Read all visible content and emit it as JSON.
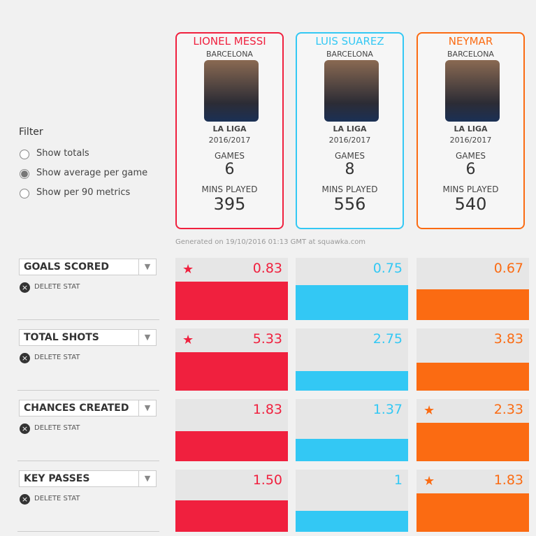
{
  "filter": {
    "title": "Filter",
    "options": [
      "Show totals",
      "Show average per game",
      "Show per 90 metrics"
    ],
    "selected": 1
  },
  "players": [
    {
      "name": "LIONEL MESSI",
      "club": "BARCELONA",
      "league": "LA LIGA",
      "season": "2016/2017",
      "games_label": "GAMES",
      "games": 6,
      "mins_label": "MINS PLAYED",
      "mins": 395,
      "color": "#f0203e"
    },
    {
      "name": "LUIS SUAREZ",
      "club": "BARCELONA",
      "league": "LA LIGA",
      "season": "2016/2017",
      "games_label": "GAMES",
      "games": 8,
      "mins_label": "MINS PLAYED",
      "mins": 556,
      "color": "#33c8f4"
    },
    {
      "name": "NEYMAR",
      "club": "BARCELONA",
      "league": "LA LIGA",
      "season": "2016/2017",
      "games_label": "GAMES",
      "games": 6,
      "mins_label": "MINS PLAYED",
      "mins": 540,
      "color": "#fb6b12"
    }
  ],
  "generated": "Generated on 19/10/2016 01:13 GMT at squawka.com",
  "stats": [
    {
      "name": "GOALS SCORED",
      "delete": "DELETE STAT",
      "values": [
        0.83,
        0.75,
        0.67
      ],
      "leader": 0
    },
    {
      "name": "TOTAL SHOTS",
      "delete": "DELETE STAT",
      "values": [
        5.33,
        2.75,
        3.83
      ],
      "leader": 0
    },
    {
      "name": "CHANCES CREATED",
      "delete": "DELETE STAT",
      "values": [
        1.83,
        1.37,
        2.33
      ],
      "leader": 2
    },
    {
      "name": "KEY PASSES",
      "delete": "DELETE STAT",
      "values": [
        1.5,
        1,
        1.83
      ],
      "value_labels": [
        "1.50",
        "1",
        "1.83"
      ],
      "leader": 2
    }
  ]
}
